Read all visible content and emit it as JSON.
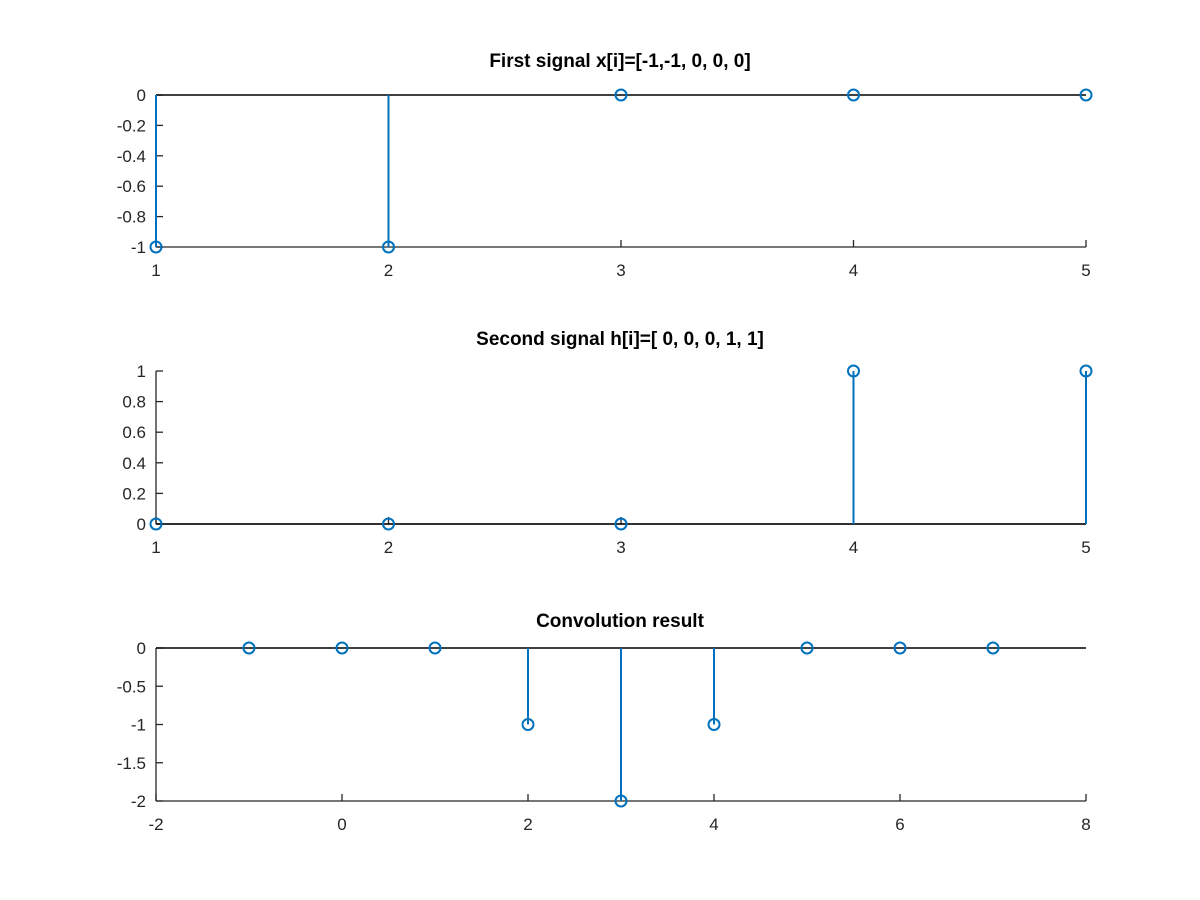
{
  "figure": {
    "background": "#ffffff",
    "stem_color": "#0072bd",
    "axis_color": "#262626",
    "baseline_color": "#000000"
  },
  "chart_data": [
    {
      "type": "stem",
      "title": "First signal x[i]=[-1,-1, 0, 0, 0]",
      "xlabel": "",
      "ylabel": "",
      "x": [
        1,
        2,
        3,
        4,
        5
      ],
      "values": [
        -1,
        -1,
        0,
        0,
        0
      ],
      "xlim": [
        1,
        5
      ],
      "ylim": [
        -1,
        0
      ],
      "xticks": [
        1,
        2,
        3,
        4,
        5
      ],
      "xtick_labels": [
        "1",
        "2",
        "3",
        "4",
        "5"
      ],
      "yticks": [
        0,
        -0.2,
        -0.4,
        -0.6,
        -0.8,
        -1
      ],
      "ytick_labels": [
        "0",
        "-0.2",
        "-0.4",
        "-0.6",
        "-0.8",
        "-1"
      ],
      "grid": false,
      "baseline": 0
    },
    {
      "type": "stem",
      "title": "Second signal h[i]=[ 0, 0, 0, 1, 1]",
      "xlabel": "",
      "ylabel": "",
      "x": [
        1,
        2,
        3,
        4,
        5
      ],
      "values": [
        0,
        0,
        0,
        1,
        1
      ],
      "xlim": [
        1,
        5
      ],
      "ylim": [
        0,
        1
      ],
      "xticks": [
        1,
        2,
        3,
        4,
        5
      ],
      "xtick_labels": [
        "1",
        "2",
        "3",
        "4",
        "5"
      ],
      "yticks": [
        1,
        0.8,
        0.6,
        0.4,
        0.2,
        0
      ],
      "ytick_labels": [
        "1",
        "0.8",
        "0.6",
        "0.4",
        "0.2",
        "0"
      ],
      "grid": false,
      "baseline": 0
    },
    {
      "type": "stem",
      "title": "Convolution result",
      "xlabel": "",
      "ylabel": "",
      "x": [
        -1,
        0,
        1,
        2,
        3,
        4,
        5,
        6,
        7
      ],
      "values": [
        0,
        0,
        0,
        -1,
        -2,
        -1,
        0,
        0,
        0
      ],
      "xlim": [
        -2,
        8
      ],
      "ylim": [
        -2,
        0
      ],
      "xticks": [
        -2,
        0,
        2,
        4,
        6,
        8
      ],
      "xtick_labels": [
        "-2",
        "0",
        "2",
        "4",
        "6",
        "8"
      ],
      "yticks": [
        0,
        -0.5,
        -1,
        -1.5,
        -2
      ],
      "ytick_labels": [
        "0",
        "-0.5",
        "-1",
        "-1.5",
        "-2"
      ],
      "grid": false,
      "baseline": 0
    }
  ]
}
